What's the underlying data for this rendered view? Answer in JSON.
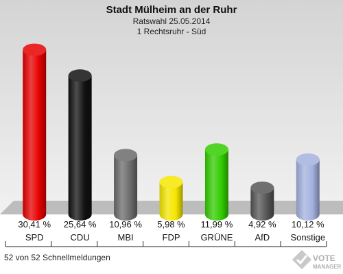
{
  "header": {
    "title": "Stadt Mülheim an der Ruhr",
    "subtitle": "Ratswahl 25.05.2014",
    "district": "1 Rechtsruhr - Süd"
  },
  "footer": {
    "note": "52 von 52 Schnellmeldungen",
    "logo_line1": "VOTE",
    "logo_line2": "MANAGER"
  },
  "colors": {
    "background_top": "#d4d4d4",
    "background_bottom": "#f2f2f2",
    "floor": "#bdbdbd"
  },
  "chart_data": {
    "type": "bar",
    "categories": [
      "SPD",
      "CDU",
      "MBI",
      "FDP",
      "GRÜNE",
      "AfD",
      "Sonstige"
    ],
    "values": [
      30.41,
      25.64,
      10.96,
      5.98,
      11.99,
      4.92,
      10.12
    ],
    "value_labels": [
      "30,41 %",
      "25,64 %",
      "10,96 %",
      "5,98 %",
      "11,99 %",
      "4,92 %",
      "10,12 %"
    ],
    "colors": [
      "#e60000",
      "#111111",
      "#6b6b6b",
      "#f5e600",
      "#33cc00",
      "#555555",
      "#a3b1de"
    ],
    "ylim": [
      0,
      32
    ]
  }
}
